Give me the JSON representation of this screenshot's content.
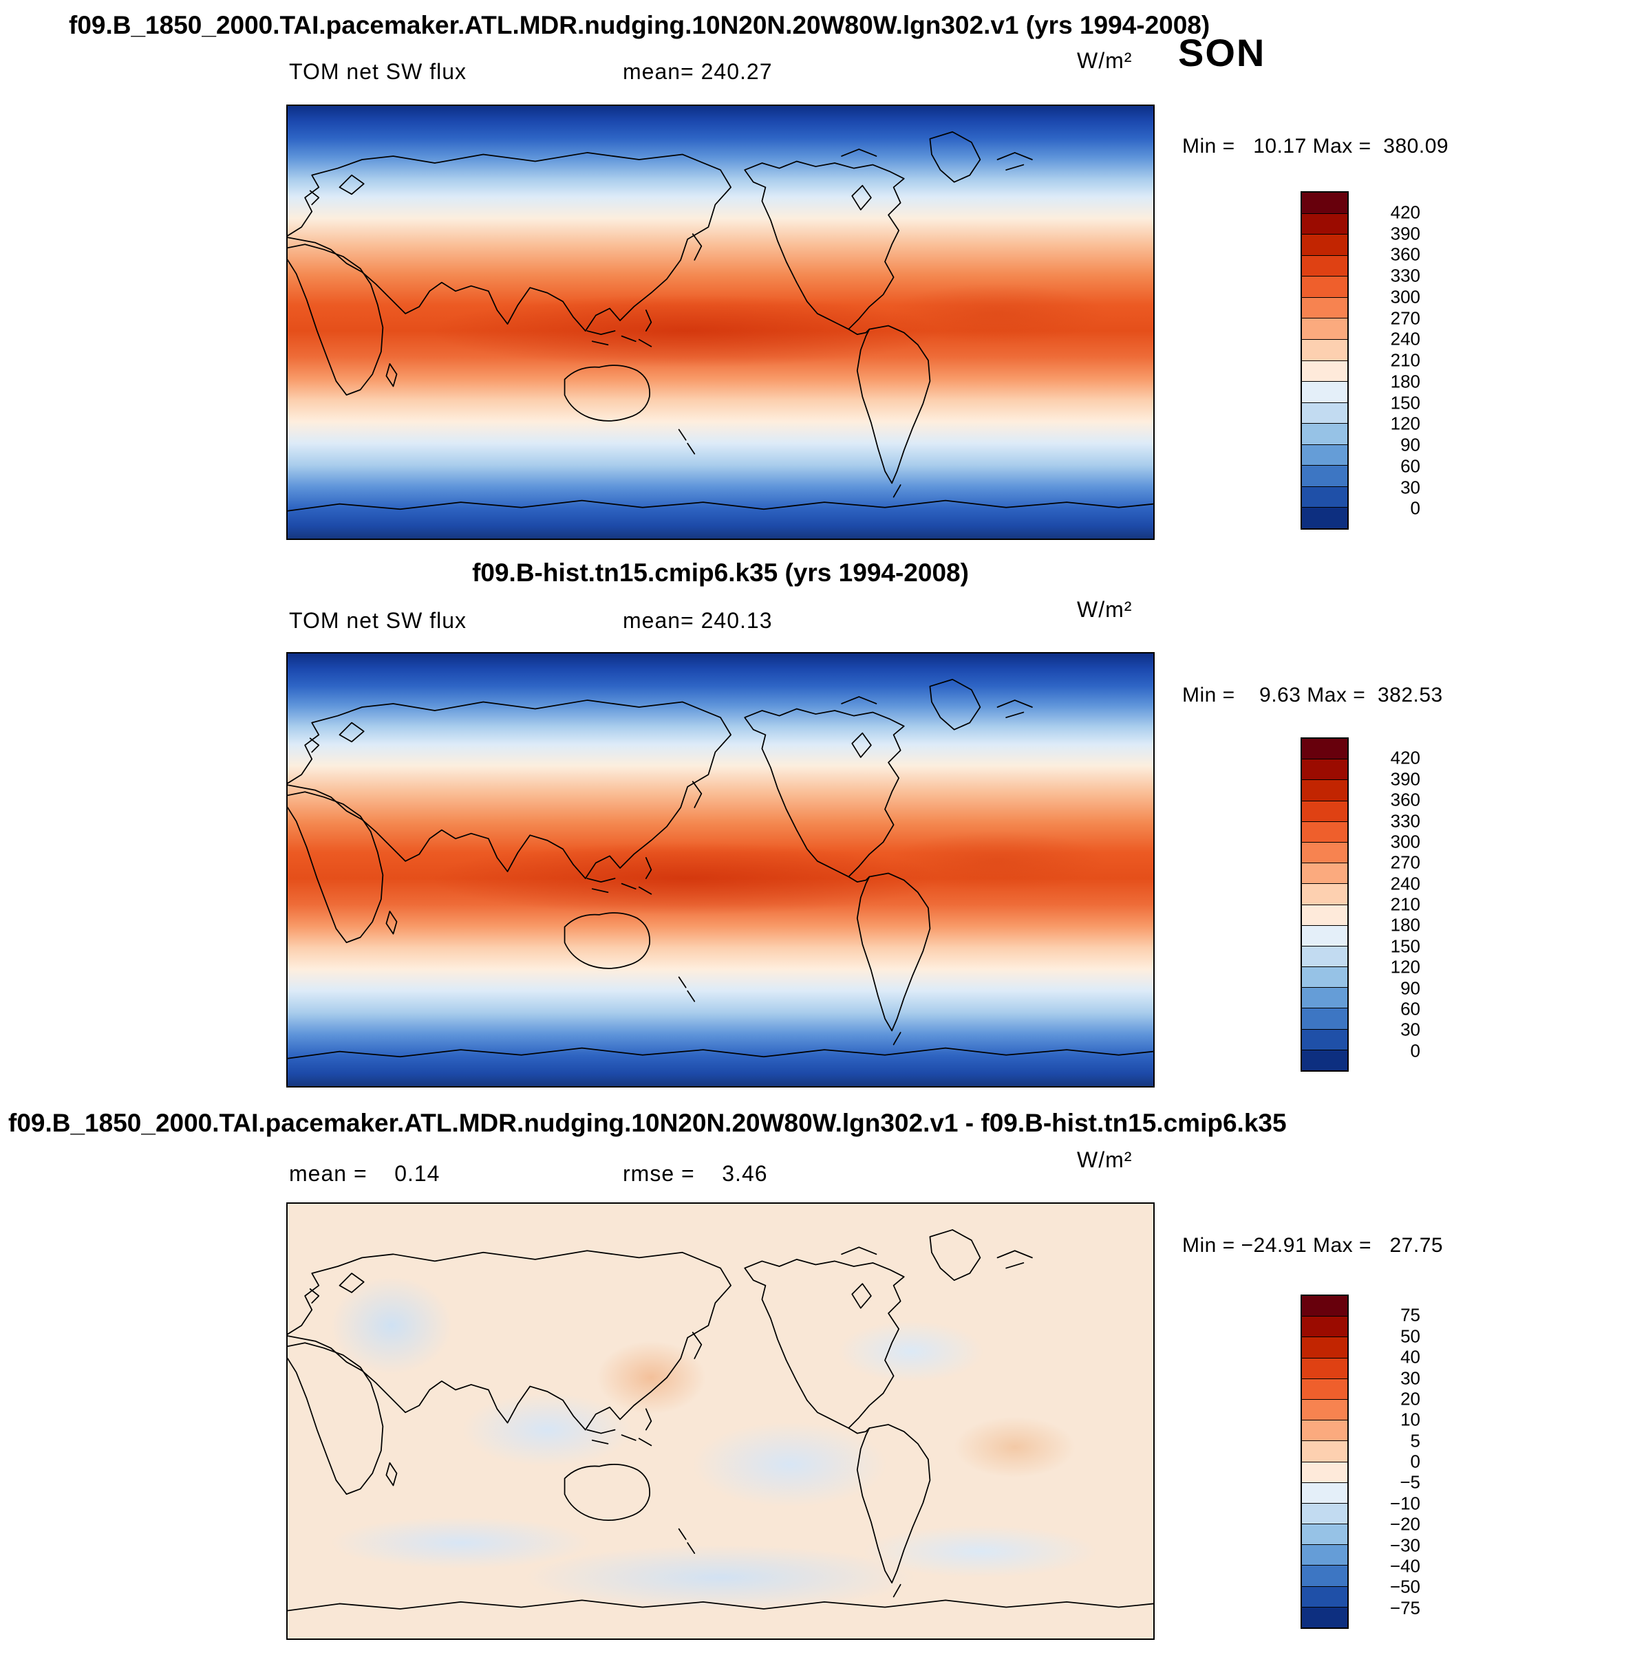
{
  "header": {
    "title": "f09.B_1850_2000.TAI.pacemaker.ATL.MDR.nudging.10N20N.20W80W.lgn302.v1 (yrs 1994-2008)",
    "season": "SON"
  },
  "panels": [
    {
      "var_label": "TOM net SW flux",
      "mean_text": "mean= 240.27",
      "units": "W/m²",
      "minmax_text": "Min =   10.17 Max =  380.09",
      "colorbar": {
        "labels": [
          "420",
          "390",
          "360",
          "330",
          "300",
          "270",
          "240",
          "210",
          "180",
          "150",
          "120",
          "90",
          "60",
          "30",
          "0"
        ],
        "colors": [
          "#67000c",
          "#9b0b00",
          "#c22501",
          "#df4113",
          "#ef5f2c",
          "#f78350",
          "#fbaa7e",
          "#fdd0b0",
          "#feeada",
          "#e4eff9",
          "#c2dbf1",
          "#96c2e6",
          "#659dd7",
          "#3d76c3",
          "#1f50a8",
          "#0d2f80"
        ]
      }
    },
    {
      "title": "f09.B-hist.tn15.cmip6.k35 (yrs 1994-2008)",
      "var_label": "TOM net SW flux",
      "mean_text": "mean= 240.13",
      "units": "W/m²",
      "minmax_text": "Min =    9.63 Max =  382.53",
      "colorbar": {
        "labels": [
          "420",
          "390",
          "360",
          "330",
          "300",
          "270",
          "240",
          "210",
          "180",
          "150",
          "120",
          "90",
          "60",
          "30",
          "0"
        ],
        "colors": [
          "#67000c",
          "#9b0b00",
          "#c22501",
          "#df4113",
          "#ef5f2c",
          "#f78350",
          "#fbaa7e",
          "#fdd0b0",
          "#feeada",
          "#e4eff9",
          "#c2dbf1",
          "#96c2e6",
          "#659dd7",
          "#3d76c3",
          "#1f50a8",
          "#0d2f80"
        ]
      }
    },
    {
      "title": "f09.B_1850_2000.TAI.pacemaker.ATL.MDR.nudging.10N20N.20W80W.lgn302.v1 - f09.B-hist.tn15.cmip6.k35",
      "mean_text": "mean =    0.14",
      "rmse_text": "rmse =    3.46",
      "units": "W/m²",
      "minmax_text": "Min = −24.91 Max =   27.75",
      "colorbar": {
        "labels": [
          "75",
          "50",
          "40",
          "30",
          "20",
          "10",
          "5",
          "0",
          "−5",
          "−10",
          "−20",
          "−30",
          "−40",
          "−50",
          "−75"
        ],
        "colors": [
          "#67000c",
          "#9b0b00",
          "#c22501",
          "#df4113",
          "#ef5f2c",
          "#f78350",
          "#fbaa7e",
          "#fdd0b0",
          "#feeada",
          "#e4eff9",
          "#c2dbf1",
          "#96c2e6",
          "#659dd7",
          "#3d76c3",
          "#1f50a8",
          "#0d2f80"
        ]
      }
    }
  ],
  "chart_data": [
    {
      "type": "heatmap",
      "title": "f09.B_1850_2000.TAI.pacemaker.ATL.MDR.nudging.10N20N.20W80W.lgn302.v1 (yrs 1994-2008)",
      "variable": "TOM net SW flux",
      "season": "SON",
      "units": "W/m²",
      "mean": 240.27,
      "min": 10.17,
      "max": 380.09,
      "contour_levels": [
        0,
        30,
        60,
        90,
        120,
        150,
        180,
        210,
        240,
        270,
        300,
        330,
        360,
        390,
        420
      ],
      "palette_top_to_bottom": [
        "#67000c",
        "#9b0b00",
        "#c22501",
        "#df4113",
        "#ef5f2c",
        "#f78350",
        "#fbaa7e",
        "#fdd0b0",
        "#feeada",
        "#e4eff9",
        "#c2dbf1",
        "#96c2e6",
        "#659dd7",
        "#3d76c3",
        "#1f50a8",
        "#0d2f80"
      ],
      "layout": "global latitude-longitude map, Pacific-centered, colorbar on right"
    },
    {
      "type": "heatmap",
      "title": "f09.B-hist.tn15.cmip6.k35 (yrs 1994-2008)",
      "variable": "TOM net SW flux",
      "season": "SON",
      "units": "W/m²",
      "mean": 240.13,
      "min": 9.63,
      "max": 382.53,
      "contour_levels": [
        0,
        30,
        60,
        90,
        120,
        150,
        180,
        210,
        240,
        270,
        300,
        330,
        360,
        390,
        420
      ],
      "palette_top_to_bottom": [
        "#67000c",
        "#9b0b00",
        "#c22501",
        "#df4113",
        "#ef5f2c",
        "#f78350",
        "#fbaa7e",
        "#fdd0b0",
        "#feeada",
        "#e4eff9",
        "#c2dbf1",
        "#96c2e6",
        "#659dd7",
        "#3d76c3",
        "#1f50a8",
        "#0d2f80"
      ],
      "layout": "global latitude-longitude map, Pacific-centered, colorbar on right"
    },
    {
      "type": "heatmap",
      "title": "f09.B_1850_2000.TAI.pacemaker.ATL.MDR.nudging.10N20N.20W80W.lgn302.v1 - f09.B-hist.tn15.cmip6.k35",
      "units": "W/m²",
      "mean": 0.14,
      "rmse": 3.46,
      "min": -24.91,
      "max": 27.75,
      "contour_levels": [
        -75,
        -50,
        -40,
        -30,
        -20,
        -10,
        -5,
        0,
        5,
        10,
        20,
        30,
        40,
        50,
        75
      ],
      "palette_top_to_bottom": [
        "#67000c",
        "#9b0b00",
        "#c22501",
        "#df4113",
        "#ef5f2c",
        "#f78350",
        "#fbaa7e",
        "#fdd0b0",
        "#feeada",
        "#e4eff9",
        "#c2dbf1",
        "#96c2e6",
        "#659dd7",
        "#3d76c3",
        "#1f50a8",
        "#0d2f80"
      ],
      "layout": "global latitude-longitude difference map, colorbar on right"
    }
  ]
}
